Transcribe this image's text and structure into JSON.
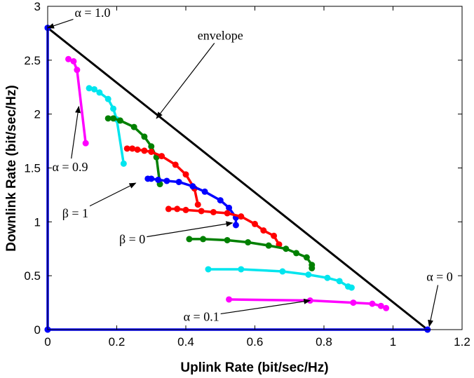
{
  "chart_data": {
    "type": "line",
    "title": "",
    "xlabel": "Uplink Rate (bit/sec/Hz)",
    "ylabel": "Downlink Rate (bit/sec/Hz)",
    "xlim": [
      0,
      1.2
    ],
    "ylim": [
      0,
      3
    ],
    "xticks": [
      "0",
      "0.2",
      "0.4",
      "0.6",
      "0.8",
      "1",
      "1.2"
    ],
    "yticks": [
      "0",
      "0.5",
      "1",
      "1.5",
      "2",
      "2.5",
      "3"
    ],
    "grid": false,
    "series": [
      {
        "color": "#ff00ff",
        "points": [
          [
            0.06,
            2.51
          ],
          [
            0.075,
            2.49
          ],
          [
            0.085,
            2.41
          ],
          [
            0.11,
            1.73
          ]
        ]
      },
      {
        "color": "#00e5ee",
        "points": [
          [
            0.12,
            2.24
          ],
          [
            0.135,
            2.23
          ],
          [
            0.15,
            2.2
          ],
          [
            0.175,
            2.14
          ],
          [
            0.19,
            2.05
          ],
          [
            0.2,
            1.95
          ],
          [
            0.22,
            1.54
          ]
        ]
      },
      {
        "color": "#008000",
        "points": [
          [
            0.175,
            1.96
          ],
          [
            0.19,
            1.96
          ],
          [
            0.21,
            1.94
          ],
          [
            0.25,
            1.88
          ],
          [
            0.28,
            1.79
          ],
          [
            0.3,
            1.7
          ],
          [
            0.315,
            1.6
          ],
          [
            0.325,
            1.35
          ]
        ]
      },
      {
        "color": "#ff0000",
        "points": [
          [
            0.23,
            1.68
          ],
          [
            0.245,
            1.68
          ],
          [
            0.26,
            1.67
          ],
          [
            0.28,
            1.66
          ],
          [
            0.3,
            1.65
          ],
          [
            0.33,
            1.61
          ],
          [
            0.37,
            1.53
          ],
          [
            0.4,
            1.44
          ],
          [
            0.425,
            1.31
          ],
          [
            0.435,
            1.16
          ]
        ]
      },
      {
        "color": "#0000ff",
        "points": [
          [
            0.29,
            1.4
          ],
          [
            0.3,
            1.4
          ],
          [
            0.32,
            1.39
          ],
          [
            0.345,
            1.38
          ],
          [
            0.38,
            1.37
          ],
          [
            0.42,
            1.33
          ],
          [
            0.455,
            1.28
          ],
          [
            0.5,
            1.2
          ],
          [
            0.525,
            1.13
          ],
          [
            0.545,
            1.04
          ],
          [
            0.545,
            0.97
          ]
        ]
      },
      {
        "color": "#ff0000",
        "points": [
          [
            0.35,
            1.12
          ],
          [
            0.375,
            1.12
          ],
          [
            0.4,
            1.11
          ],
          [
            0.445,
            1.1
          ],
          [
            0.48,
            1.09
          ],
          [
            0.52,
            1.08
          ],
          [
            0.56,
            1.05
          ],
          [
            0.6,
            0.98
          ],
          [
            0.625,
            0.92
          ],
          [
            0.655,
            0.87
          ],
          [
            0.67,
            0.79
          ]
        ]
      },
      {
        "color": "#008000",
        "points": [
          [
            0.41,
            0.84
          ],
          [
            0.45,
            0.84
          ],
          [
            0.52,
            0.83
          ],
          [
            0.58,
            0.81
          ],
          [
            0.64,
            0.78
          ],
          [
            0.69,
            0.75
          ],
          [
            0.72,
            0.71
          ],
          [
            0.75,
            0.67
          ],
          [
            0.765,
            0.6
          ],
          [
            0.765,
            0.57
          ]
        ]
      },
      {
        "color": "#00e5ee",
        "points": [
          [
            0.465,
            0.56
          ],
          [
            0.56,
            0.56
          ],
          [
            0.68,
            0.54
          ],
          [
            0.755,
            0.51
          ],
          [
            0.81,
            0.48
          ],
          [
            0.845,
            0.45
          ],
          [
            0.87,
            0.4
          ],
          [
            0.88,
            0.39
          ]
        ]
      },
      {
        "color": "#ff00ff",
        "points": [
          [
            0.525,
            0.28
          ],
          [
            0.76,
            0.27
          ],
          [
            0.885,
            0.25
          ],
          [
            0.94,
            0.24
          ],
          [
            0.965,
            0.22
          ],
          [
            0.98,
            0.2
          ]
        ]
      },
      {
        "color": "#0000ff",
        "points": [
          [
            0,
            0
          ],
          [
            0,
            2.8
          ]
        ]
      },
      {
        "color": "#0000ff",
        "points": [
          [
            0,
            0
          ],
          [
            1.1,
            0
          ]
        ]
      },
      {
        "color": "#000000",
        "points": [
          [
            0,
            2.8
          ],
          [
            1.1,
            0
          ]
        ]
      }
    ],
    "annotations": [
      {
        "text": "α = 1.0",
        "text_at": [
          0.13,
          2.94
        ],
        "arrow_to": [
          0.0,
          2.8
        ]
      },
      {
        "text": "envelope",
        "text_at": [
          0.5,
          2.73
        ],
        "arrow_to": [
          0.315,
          1.96
        ]
      },
      {
        "text": "α = 0.9",
        "text_at": [
          0.065,
          1.51
        ],
        "arrow_to": [
          0.09,
          2.07
        ]
      },
      {
        "text": "β = 1",
        "text_at": [
          0.08,
          1.08
        ],
        "arrow_to": [
          0.255,
          1.36
        ]
      },
      {
        "text": "β = 0",
        "text_at": [
          0.245,
          0.84
        ],
        "arrow_to": [
          0.535,
          0.99
        ]
      },
      {
        "text": "α = 0",
        "text_at": [
          1.135,
          0.49
        ],
        "arrow_to": [
          1.105,
          0.03
        ]
      },
      {
        "text": "α = 0.1",
        "text_at": [
          0.445,
          0.12
        ],
        "arrow_to": [
          0.76,
          0.27
        ]
      }
    ]
  }
}
